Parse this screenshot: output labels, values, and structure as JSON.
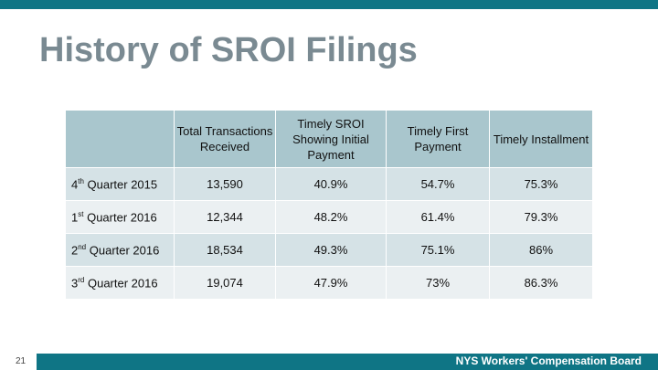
{
  "slide": {
    "title": "History of SROI Filings",
    "page_number": "21",
    "footer_brand": "NYS Workers' Compensation Board"
  },
  "table": {
    "headers": [
      "",
      "Total Transactions Received",
      "Timely SROI Showing Initial Payment",
      "Timely First Payment",
      "Timely Installment"
    ],
    "rows": [
      {
        "ordinal": "4",
        "suffix": "th",
        "period": " Quarter 2015",
        "cells": [
          "13,590",
          "40.9%",
          "54.7%",
          "75.3%"
        ]
      },
      {
        "ordinal": "1",
        "suffix": "st",
        "period": " Quarter 2016",
        "cells": [
          "12,344",
          "48.2%",
          "61.4%",
          "79.3%"
        ]
      },
      {
        "ordinal": "2",
        "suffix": "nd",
        "period": " Quarter 2016",
        "cells": [
          "18,534",
          "49.3%",
          "75.1%",
          "86%"
        ]
      },
      {
        "ordinal": "3",
        "suffix": "rd",
        "period": " Quarter 2016",
        "cells": [
          "19,074",
          "47.9%",
          "73%",
          "86.3%"
        ]
      }
    ]
  }
}
